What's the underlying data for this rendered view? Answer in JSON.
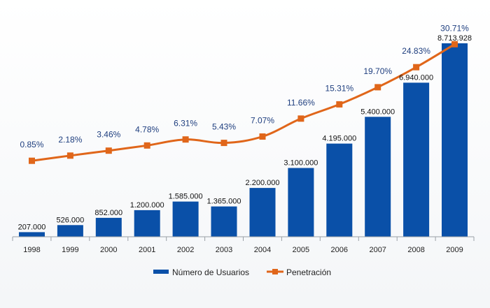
{
  "chart_data": {
    "type": "bar",
    "categories": [
      "1998",
      "1999",
      "2000",
      "2001",
      "2002",
      "2003",
      "2004",
      "2005",
      "2006",
      "2007",
      "2008",
      "2009"
    ],
    "series": [
      {
        "name": "Número de Usuarios",
        "type": "bar",
        "values": [
          207000,
          526000,
          852000,
          1200000,
          1585000,
          1365000,
          2200000,
          3100000,
          4195000,
          5400000,
          6940000,
          8713928
        ],
        "labels": [
          "207.000",
          "526.000",
          "852.000",
          "1.200.000",
          "1.585.000",
          "1.365.000",
          "2.200.000",
          "3.100.000",
          "4.195.000",
          "5.400.000",
          "6.940.000",
          "8.713.928"
        ],
        "color": "#0a50a8"
      },
      {
        "name": "Penetración",
        "type": "line",
        "values": [
          0.85,
          2.18,
          3.46,
          4.78,
          6.31,
          5.43,
          7.07,
          11.66,
          15.31,
          19.7,
          24.83,
          30.71
        ],
        "labels": [
          "0.85%",
          "2.18%",
          "3.46%",
          "4.78%",
          "6.31%",
          "5.43%",
          "7.07%",
          "11.66%",
          "15.31%",
          "19.70%",
          "24.83%",
          "30.71%"
        ],
        "color": "#e0661a"
      }
    ],
    "legend": "bottom",
    "grid": false,
    "colors": {
      "axis": "#9aa0a6",
      "tick_text": "#222222",
      "pct_text": "#1f3f7f",
      "value_text": "#111111"
    }
  }
}
